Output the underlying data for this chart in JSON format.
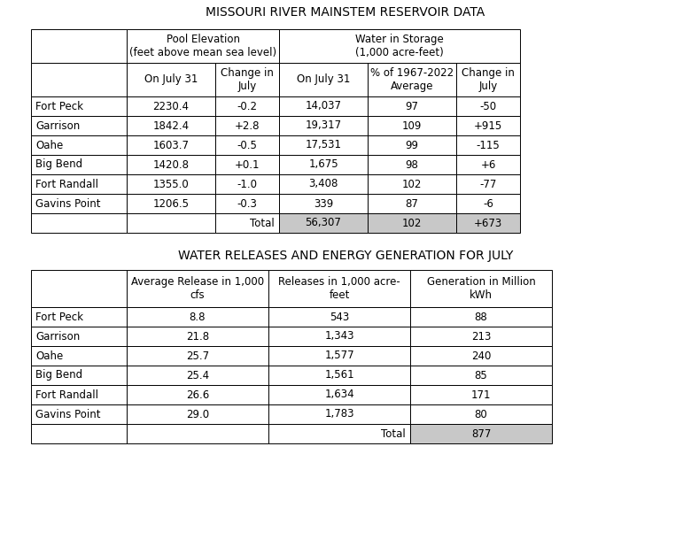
{
  "title1": "MISSOURI RIVER MAINSTEM RESERVOIR DATA",
  "title2": "WATER RELEASES AND ENERGY GENERATION FOR JULY",
  "table1": {
    "col_headers_top_left": "Pool Elevation\n(feet above mean sea level)",
    "col_headers_top_right": "Water in Storage\n(1,000 acre-feet)",
    "col_headers_sub": [
      "On July 31",
      "Change in\nJuly",
      "On July 31",
      "% of 1967-2022\nAverage",
      "Change in\nJuly"
    ],
    "row_labels": [
      "Fort Peck",
      "Garrison",
      "Oahe",
      "Big Bend",
      "Fort Randall",
      "Gavins Point"
    ],
    "data": [
      [
        "2230.4",
        "-0.2",
        "14,037",
        "97",
        "-50"
      ],
      [
        "1842.4",
        "+2.8",
        "19,317",
        "109",
        "+915"
      ],
      [
        "1603.7",
        "-0.5",
        "17,531",
        "99",
        "-115"
      ],
      [
        "1420.8",
        "+0.1",
        "1,675",
        "98",
        "+6"
      ],
      [
        "1355.0",
        "-1.0",
        "3,408",
        "102",
        "-77"
      ],
      [
        "1206.5",
        "-0.3",
        "339",
        "87",
        "-6"
      ]
    ],
    "total_vals": [
      "56,307",
      "102",
      "+673"
    ]
  },
  "table2": {
    "col_headers": [
      "Average Release in 1,000\ncfs",
      "Releases in 1,000 acre-\nfeet",
      "Generation in Million\nkWh"
    ],
    "row_labels": [
      "Fort Peck",
      "Garrison",
      "Oahe",
      "Big Bend",
      "Fort Randall",
      "Gavins Point"
    ],
    "data": [
      [
        "8.8",
        "543",
        "88"
      ],
      [
        "21.8",
        "1,343",
        "213"
      ],
      [
        "25.7",
        "1,577",
        "240"
      ],
      [
        "25.4",
        "1,561",
        "85"
      ],
      [
        "26.6",
        "1,634",
        "171"
      ],
      [
        "29.0",
        "1,783",
        "80"
      ]
    ],
    "total_val": "877"
  },
  "bg_color": "#ffffff",
  "total_bg": "#c8c8c8",
  "font_size": 8.5,
  "title_font_size": 10.0
}
